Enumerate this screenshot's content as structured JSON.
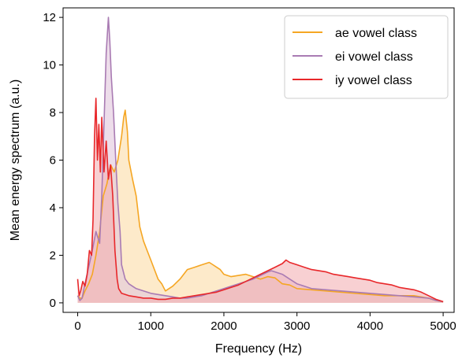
{
  "chart_data": {
    "type": "area",
    "title": "",
    "xlabel": "Frequency (Hz)",
    "ylabel": "Mean energy spectrum (a.u.)",
    "xlim": [
      -200,
      5150
    ],
    "ylim": [
      -0.4,
      12.4
    ],
    "xticks": [
      0,
      1000,
      2000,
      3000,
      4000,
      5000
    ],
    "yticks": [
      0,
      2,
      4,
      6,
      8,
      10,
      12
    ],
    "xtick_labels": [
      "0",
      "1000",
      "2000",
      "3000",
      "4000",
      "5000"
    ],
    "ytick_labels": [
      "0",
      "2",
      "4",
      "6",
      "8",
      "10",
      "12"
    ],
    "grid": false,
    "legend_position": "top-right",
    "series": [
      {
        "name": "ae vowel class",
        "color": "#F5A623",
        "fill_color": "#FBDCA6",
        "x": [
          0,
          30,
          60,
          100,
          150,
          200,
          250,
          300,
          350,
          400,
          450,
          500,
          550,
          600,
          630,
          650,
          680,
          700,
          750,
          800,
          850,
          900,
          950,
          1000,
          1050,
          1100,
          1150,
          1200,
          1300,
          1400,
          1500,
          1600,
          1700,
          1800,
          1850,
          1900,
          1950,
          2000,
          2100,
          2200,
          2300,
          2400,
          2500,
          2600,
          2700,
          2800,
          2900,
          3000,
          3200,
          3400,
          3600,
          3800,
          4000,
          4200,
          4400,
          4600,
          4800,
          4900,
          5000
        ],
        "y": [
          0.3,
          0.2,
          0.2,
          0.5,
          0.8,
          1.2,
          2.0,
          3.0,
          4.5,
          5.0,
          5.8,
          5.5,
          6.0,
          7.0,
          7.8,
          8.1,
          7.2,
          6.0,
          5.2,
          4.5,
          3.2,
          2.6,
          2.2,
          1.8,
          1.4,
          1.0,
          0.8,
          0.5,
          0.7,
          1.0,
          1.4,
          1.5,
          1.6,
          1.7,
          1.6,
          1.5,
          1.4,
          1.2,
          1.1,
          1.15,
          1.2,
          1.1,
          1.0,
          1.1,
          1.05,
          0.8,
          0.75,
          0.6,
          0.55,
          0.5,
          0.45,
          0.4,
          0.35,
          0.3,
          0.3,
          0.3,
          0.2,
          0.1,
          0.05
        ]
      },
      {
        "name": "ei vowel class",
        "color": "#A97BB3",
        "fill_color": "#E1C6DC",
        "x": [
          0,
          30,
          60,
          100,
          150,
          200,
          250,
          300,
          330,
          360,
          390,
          420,
          440,
          460,
          490,
          520,
          550,
          580,
          600,
          650,
          700,
          800,
          900,
          1000,
          1100,
          1200,
          1300,
          1400,
          1500,
          1600,
          1700,
          1800,
          1900,
          2000,
          2100,
          2200,
          2300,
          2400,
          2500,
          2600,
          2650,
          2700,
          2800,
          2900,
          3000,
          3200,
          3400,
          3600,
          3800,
          4000,
          4200,
          4400,
          4600,
          4800,
          4900,
          5000
        ],
        "y": [
          0.3,
          0.1,
          0.2,
          0.8,
          1.5,
          2.2,
          3.0,
          2.5,
          4.5,
          7.5,
          10.5,
          12.0,
          11.0,
          9.5,
          8.0,
          6.0,
          4.2,
          3.0,
          1.6,
          1.0,
          0.8,
          0.6,
          0.5,
          0.4,
          0.35,
          0.3,
          0.25,
          0.2,
          0.2,
          0.25,
          0.3,
          0.4,
          0.5,
          0.6,
          0.7,
          0.8,
          0.9,
          1.0,
          1.15,
          1.3,
          1.35,
          1.3,
          1.2,
          1.0,
          0.8,
          0.6,
          0.55,
          0.5,
          0.45,
          0.4,
          0.35,
          0.3,
          0.25,
          0.2,
          0.1,
          0.05
        ]
      },
      {
        "name": "iy vowel class",
        "color": "#E8272A",
        "fill_color": "#F3B0B4",
        "x": [
          0,
          20,
          40,
          70,
          100,
          130,
          160,
          190,
          210,
          230,
          250,
          270,
          290,
          310,
          330,
          360,
          390,
          420,
          450,
          480,
          510,
          540,
          560,
          600,
          650,
          700,
          800,
          900,
          1000,
          1100,
          1200,
          1300,
          1400,
          1500,
          1600,
          1700,
          1800,
          1900,
          2000,
          2100,
          2200,
          2300,
          2400,
          2500,
          2600,
          2700,
          2800,
          2850,
          2900,
          3000,
          3100,
          3200,
          3300,
          3400,
          3500,
          3600,
          3700,
          3800,
          3900,
          4000,
          4100,
          4200,
          4300,
          4400,
          4500,
          4600,
          4700,
          4800,
          4900,
          5000
        ],
        "y": [
          1.0,
          0.3,
          0.5,
          0.9,
          0.7,
          1.2,
          2.2,
          2.0,
          3.5,
          7.0,
          8.6,
          6.0,
          7.5,
          5.5,
          7.8,
          5.5,
          6.8,
          5.2,
          5.8,
          4.5,
          2.2,
          1.0,
          0.6,
          0.4,
          0.35,
          0.3,
          0.25,
          0.2,
          0.2,
          0.15,
          0.15,
          0.2,
          0.2,
          0.25,
          0.3,
          0.35,
          0.4,
          0.45,
          0.55,
          0.65,
          0.75,
          0.9,
          1.05,
          1.2,
          1.35,
          1.5,
          1.65,
          1.8,
          1.7,
          1.6,
          1.5,
          1.4,
          1.35,
          1.3,
          1.2,
          1.15,
          1.1,
          1.05,
          1.0,
          0.95,
          0.85,
          0.8,
          0.75,
          0.65,
          0.6,
          0.55,
          0.45,
          0.3,
          0.15,
          0.05
        ]
      }
    ]
  }
}
